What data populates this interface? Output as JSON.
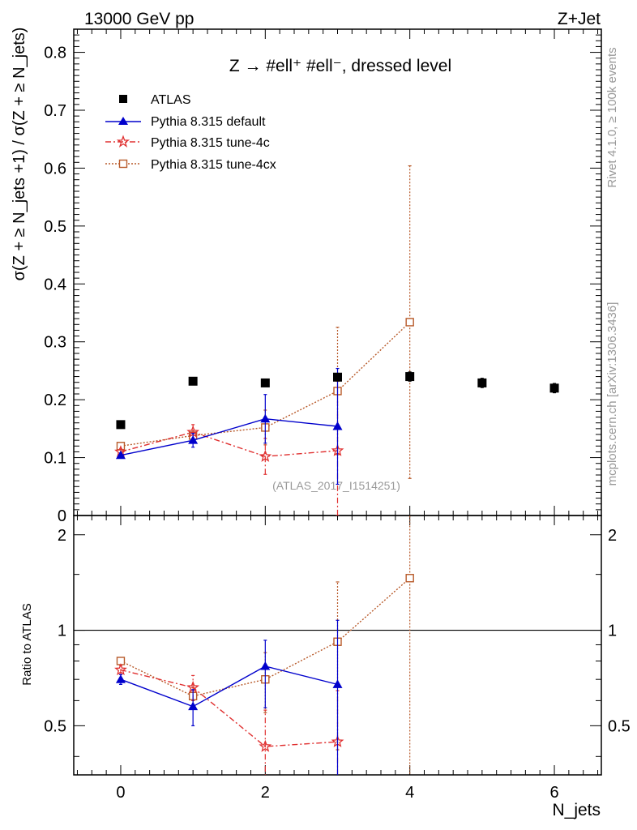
{
  "header": {
    "left": "13000 GeV pp",
    "right": "Z+Jet"
  },
  "side_labels": {
    "rivet": "Rivet 4.1.0, ≥ 100k events",
    "mcplots": "mcplots.cern.ch [arXiv:1306.3436]"
  },
  "colors": {
    "atlas": "#000000",
    "default": "#0000cc",
    "tune4c": "#e03030",
    "tune4cx": "#b85a2a",
    "watermark": "#999999"
  },
  "chart_data": [
    {
      "type": "scatter",
      "panel": "main",
      "title": "Z → #ell⁺ #ell⁻, dressed level",
      "watermark": "(ATLAS_2017_I1514251)",
      "ylabel": "σ(Z + ≥ N_jets +1) / σ(Z + ≥ N_jets)",
      "xlim": [
        -0.65,
        6.65
      ],
      "ylim": [
        0,
        0.84
      ],
      "x_ticks": [
        0,
        2,
        4,
        6
      ],
      "y_ticks": [
        0,
        0.1,
        0.2,
        0.3,
        0.4,
        0.5,
        0.6,
        0.7,
        0.8
      ],
      "y_tick_labels": [
        "0",
        "0.1",
        "0.2",
        "0.3",
        "0.4",
        "0.5",
        "0.6",
        "0.7",
        "0.8"
      ],
      "legend_position": "top-left",
      "series": [
        {
          "name": "ATLAS",
          "style": "square",
          "x": [
            0,
            1,
            2,
            3,
            4,
            5,
            6
          ],
          "y": [
            0.157,
            0.232,
            0.229,
            0.239,
            0.24,
            0.229,
            0.22
          ],
          "err_lo": [
            0.002,
            0.003,
            0.004,
            0.006,
            0.008,
            0.008,
            0.008
          ],
          "err_hi": [
            0.002,
            0.003,
            0.004,
            0.006,
            0.008,
            0.008,
            0.008
          ]
        },
        {
          "name": "Pythia 8.315 default",
          "style": "triangle",
          "x": [
            0,
            1,
            2,
            3
          ],
          "y": [
            0.104,
            0.13,
            0.167,
            0.154
          ],
          "err_lo": [
            0.004,
            0.012,
            0.042,
            0.1
          ],
          "err_hi": [
            0.004,
            0.012,
            0.042,
            0.1
          ]
        },
        {
          "name": "Pythia 8.315 tune-4c",
          "style": "star",
          "x": [
            0,
            1,
            2,
            3
          ],
          "y": [
            0.11,
            0.144,
            0.102,
            0.112
          ],
          "err_lo": [
            0.005,
            0.013,
            0.031,
            0.12
          ],
          "err_hi": [
            0.005,
            0.013,
            0.031,
            0.12
          ]
        },
        {
          "name": "Pythia 8.315 tune-4cx",
          "style": "open-square",
          "x": [
            0,
            1,
            2,
            3,
            4
          ],
          "y": [
            0.12,
            0.138,
            0.152,
            0.215,
            0.334
          ],
          "err_lo": [
            0.003,
            0.009,
            0.03,
            0.11,
            0.27
          ],
          "err_hi": [
            0.003,
            0.009,
            0.03,
            0.11,
            0.27
          ]
        }
      ]
    },
    {
      "type": "scatter",
      "panel": "ratio",
      "ylabel": "Ratio to ATLAS",
      "xlabel": "N_jets",
      "xlim": [
        -0.65,
        6.65
      ],
      "ylim": [
        0.35,
        2.3
      ],
      "scale": "log",
      "x_ticks": [
        0,
        2,
        4,
        6
      ],
      "x_tick_labels": [
        "0",
        "2",
        "4",
        "6"
      ],
      "y_ticks": [
        0.5,
        1,
        2
      ],
      "y_tick_labels": [
        "0.5",
        "1",
        "2"
      ],
      "reference_line": 1,
      "series": [
        {
          "name": "Pythia 8.315 default",
          "style": "triangle",
          "x": [
            0,
            1,
            2,
            3
          ],
          "y": [
            0.7,
            0.575,
            0.77,
            0.675
          ],
          "err_lo": [
            0.025,
            0.075,
            0.2,
            0.4
          ],
          "err_hi": [
            0.025,
            0.075,
            0.16,
            0.4
          ]
        },
        {
          "name": "Pythia 8.315 tune-4c",
          "style": "star",
          "x": [
            0,
            1,
            2,
            3
          ],
          "y": [
            0.75,
            0.66,
            0.43,
            0.445
          ],
          "err_lo": [
            0.025,
            0.06,
            0.13,
            0.2
          ],
          "err_hi": [
            0.025,
            0.06,
            0.13,
            0.2
          ]
        },
        {
          "name": "Pythia 8.315 tune-4cx",
          "style": "open-square",
          "x": [
            0,
            1,
            2,
            3,
            4
          ],
          "y": [
            0.8,
            0.62,
            0.7,
            0.92,
            1.46
          ],
          "err_lo": [
            0.02,
            0.04,
            0.15,
            0.5,
            1.2
          ],
          "err_hi": [
            0.02,
            0.04,
            0.15,
            0.5,
            1.2
          ]
        }
      ]
    }
  ]
}
